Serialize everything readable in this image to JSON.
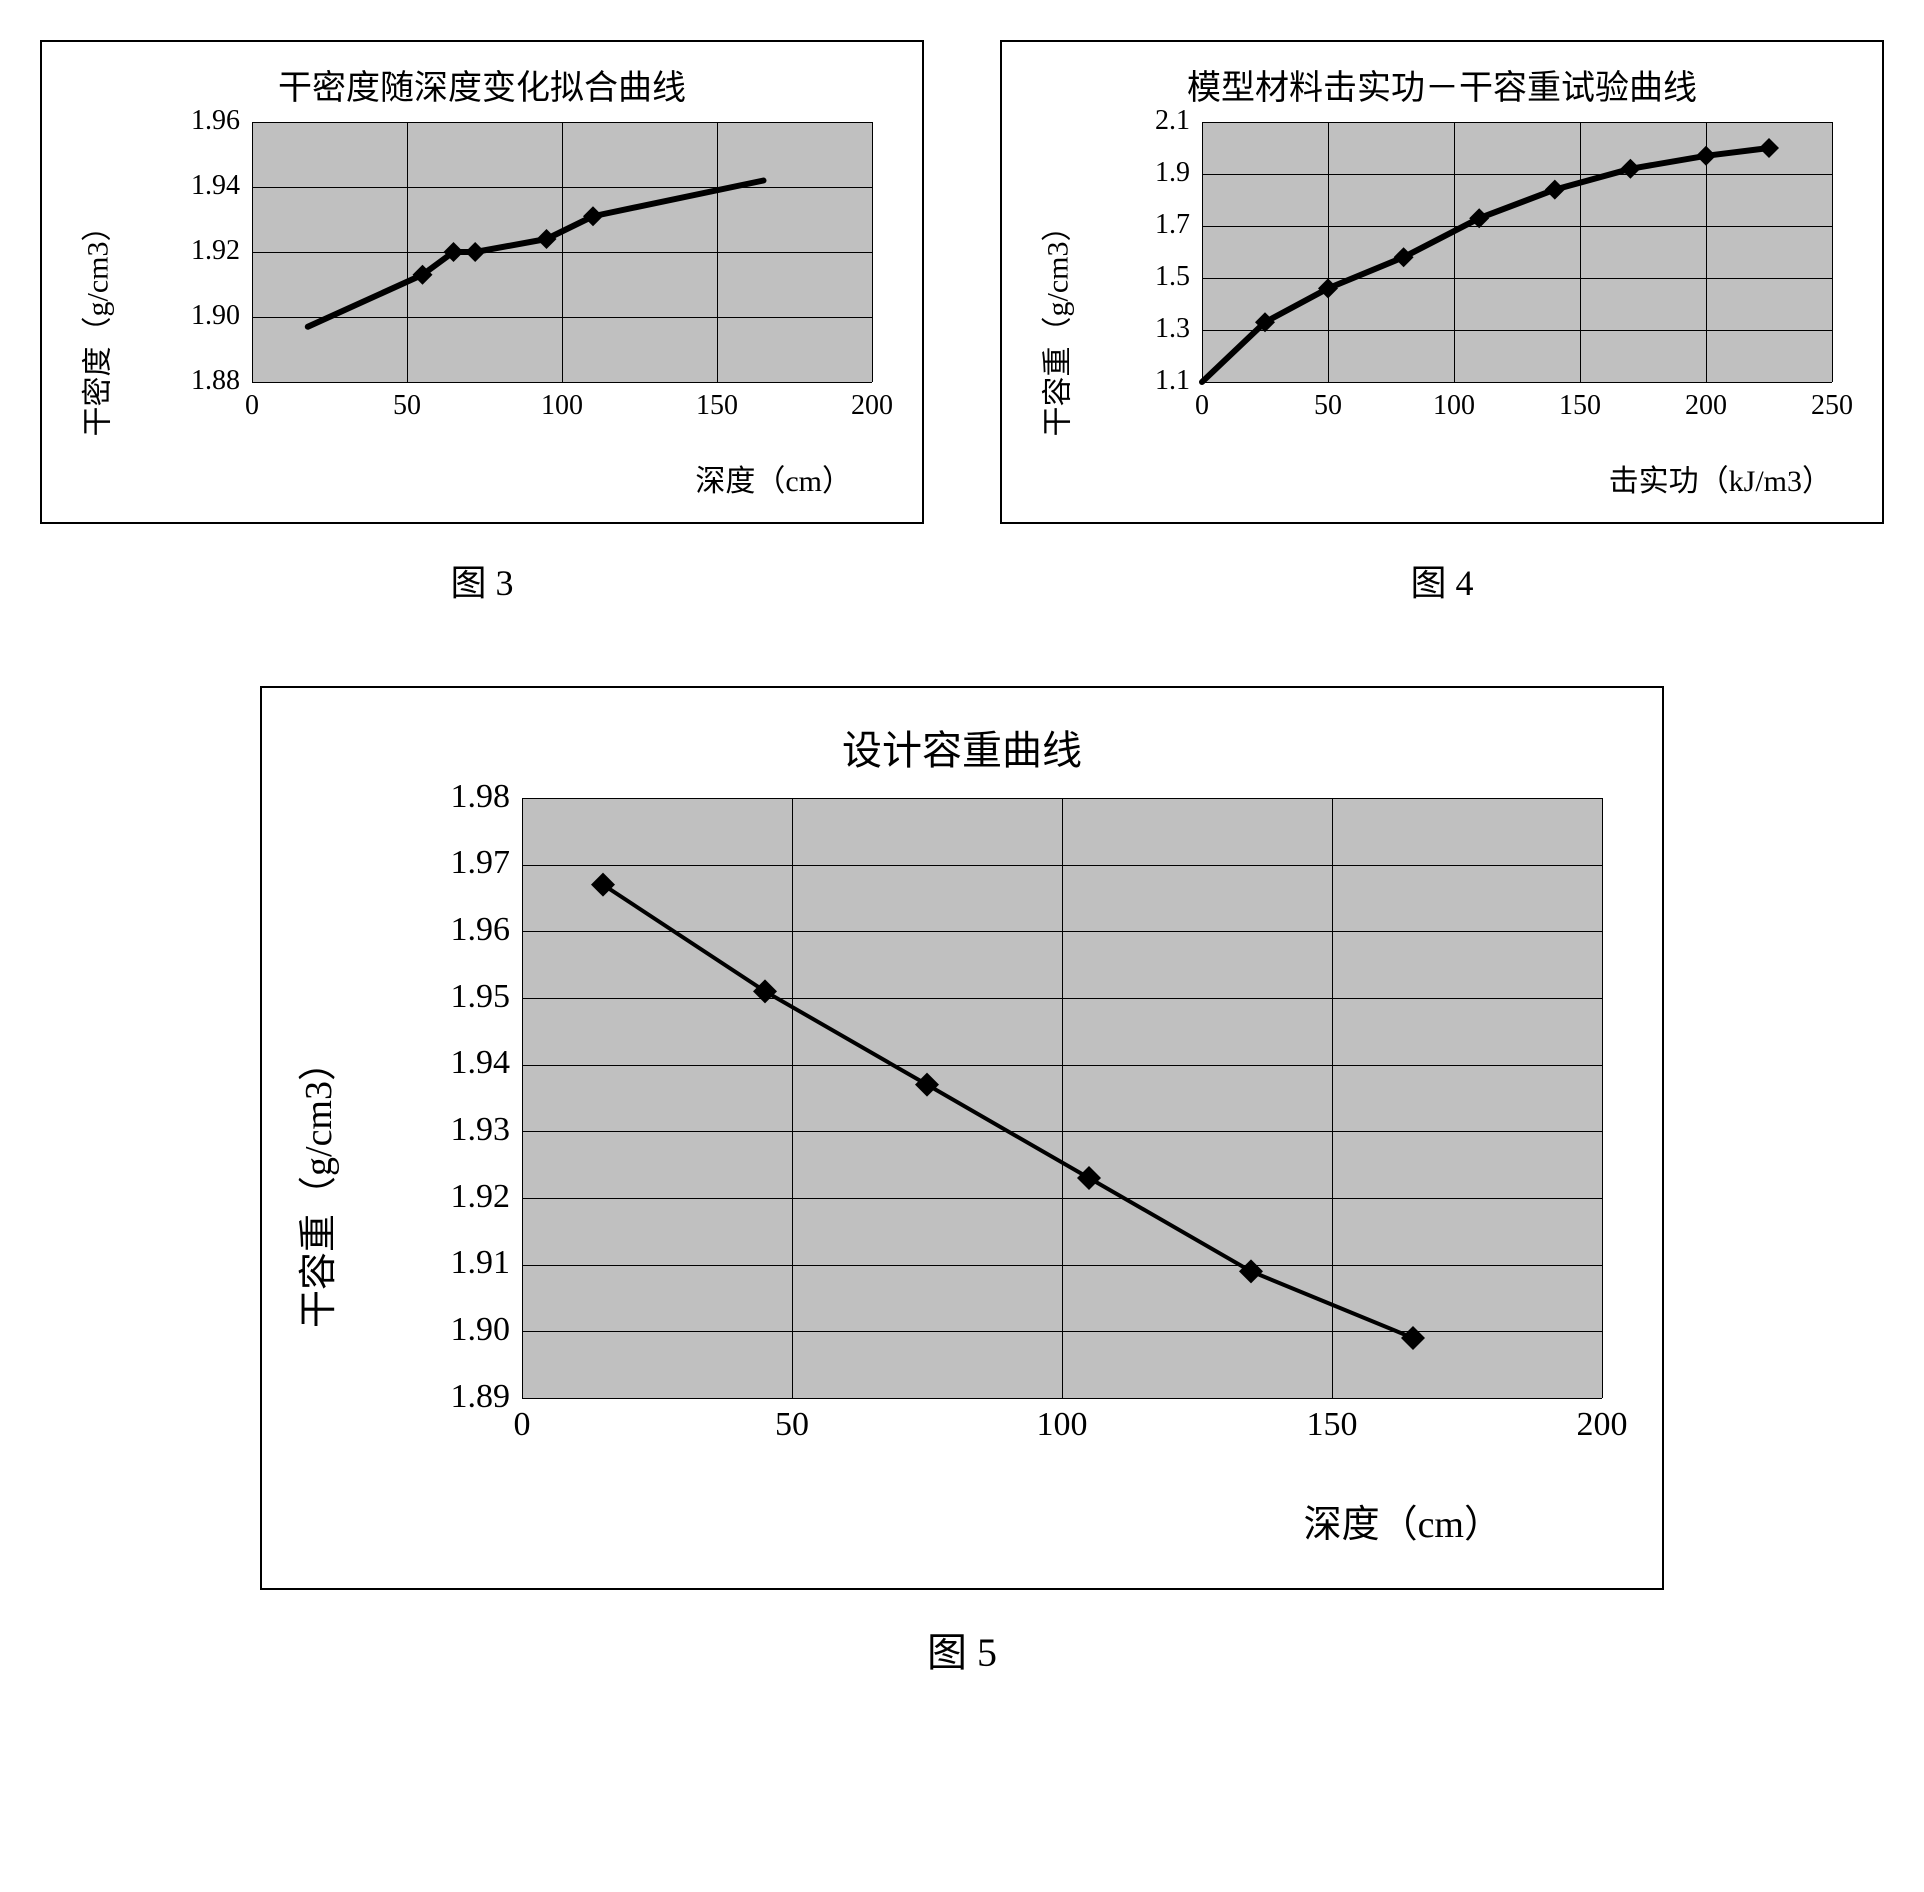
{
  "chart3": {
    "type": "line",
    "title": "干密度随深度变化拟合曲线",
    "caption": "图 3",
    "ylabel": "干密度（g/cm3）",
    "xlabel": "深度（cm）",
    "xlim": [
      0,
      200
    ],
    "xtick_step": 50,
    "ylim": [
      1.88,
      1.96
    ],
    "ytick_step": 0.02,
    "bg": "#c0c0c0",
    "grid_color": "#000000",
    "line_color": "#000000",
    "line_width": 6,
    "marker": "diamond",
    "marker_size": 10,
    "curve": [
      {
        "x": 18,
        "y": 1.897
      },
      {
        "x": 55,
        "y": 1.913
      },
      {
        "x": 65,
        "y": 1.92
      },
      {
        "x": 72,
        "y": 1.92
      },
      {
        "x": 95,
        "y": 1.924
      },
      {
        "x": 110,
        "y": 1.931
      },
      {
        "x": 165,
        "y": 1.942
      }
    ],
    "markers": [
      {
        "x": 55,
        "y": 1.913
      },
      {
        "x": 65,
        "y": 1.92
      },
      {
        "x": 72,
        "y": 1.92
      },
      {
        "x": 95,
        "y": 1.924
      },
      {
        "x": 110,
        "y": 1.931
      }
    ]
  },
  "chart4": {
    "type": "line",
    "title": "模型材料击实功－干容重试验曲线",
    "caption": "图 4",
    "ylabel": "干容重（g/cm3）",
    "xlabel": "击实功（kJ/m3）",
    "xlim": [
      0,
      250
    ],
    "xtick_step": 50,
    "ylim": [
      1.1,
      2.1
    ],
    "ytick_step": 0.2,
    "bg": "#c0c0c0",
    "grid_color": "#000000",
    "line_color": "#000000",
    "line_width": 6,
    "marker": "diamond",
    "marker_size": 10,
    "curve": [
      {
        "x": 0,
        "y": 1.1
      },
      {
        "x": 25,
        "y": 1.33
      },
      {
        "x": 50,
        "y": 1.46
      },
      {
        "x": 80,
        "y": 1.58
      },
      {
        "x": 110,
        "y": 1.73
      },
      {
        "x": 140,
        "y": 1.84
      },
      {
        "x": 170,
        "y": 1.92
      },
      {
        "x": 200,
        "y": 1.97
      },
      {
        "x": 225,
        "y": 2.0
      }
    ],
    "markers": [
      {
        "x": 25,
        "y": 1.33
      },
      {
        "x": 50,
        "y": 1.46
      },
      {
        "x": 80,
        "y": 1.58
      },
      {
        "x": 110,
        "y": 1.73
      },
      {
        "x": 140,
        "y": 1.84
      },
      {
        "x": 170,
        "y": 1.92
      },
      {
        "x": 200,
        "y": 1.97
      },
      {
        "x": 225,
        "y": 2.0
      }
    ]
  },
  "chart5": {
    "type": "line",
    "title": "设计容重曲线",
    "caption": "图 5",
    "ylabel": "干容重（g/cm3）",
    "xlabel": "深度（cm）",
    "xlim": [
      0,
      200
    ],
    "xtick_step": 50,
    "ylim": [
      1.89,
      1.98
    ],
    "ytick_step": 0.01,
    "bg": "#c0c0c0",
    "grid_color": "#000000",
    "line_color": "#000000",
    "line_width": 4,
    "marker": "diamond",
    "marker_size": 12,
    "curve": [
      {
        "x": 15,
        "y": 1.967
      },
      {
        "x": 45,
        "y": 1.951
      },
      {
        "x": 75,
        "y": 1.937
      },
      {
        "x": 105,
        "y": 1.923
      },
      {
        "x": 135,
        "y": 1.909
      },
      {
        "x": 165,
        "y": 1.899
      }
    ],
    "markers": [
      {
        "x": 15,
        "y": 1.967
      },
      {
        "x": 45,
        "y": 1.951
      },
      {
        "x": 75,
        "y": 1.937
      },
      {
        "x": 105,
        "y": 1.923
      },
      {
        "x": 135,
        "y": 1.909
      },
      {
        "x": 165,
        "y": 1.899
      }
    ]
  }
}
